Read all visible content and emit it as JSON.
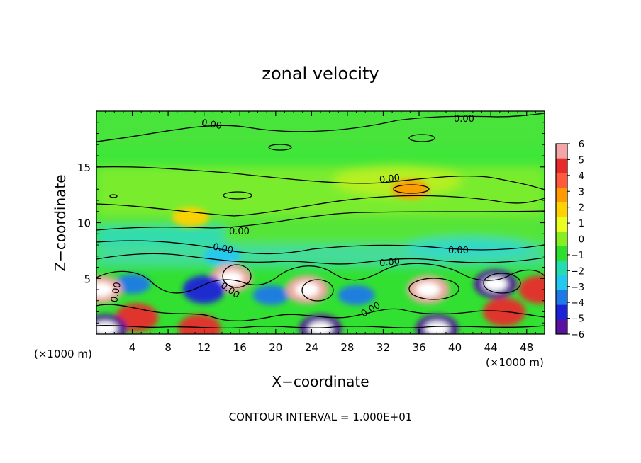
{
  "chart_data": {
    "type": "heatmap",
    "title": "zonal velocity",
    "xlabel": "X−coordinate",
    "ylabel": "Z−coordinate",
    "x_unit_left": "(×1000 m)",
    "x_unit_right": "(×1000 m)",
    "footer": "CONTOUR INTERVAL = 1.000E+01",
    "xlim": [
      0,
      50
    ],
    "ylim": [
      0,
      20
    ],
    "x_ticks": [
      4,
      8,
      12,
      16,
      20,
      24,
      28,
      32,
      36,
      40,
      44,
      48
    ],
    "y_ticks": [
      5,
      10,
      15
    ],
    "colorbar": {
      "ticks": [
        "6",
        "5",
        "4",
        "3",
        "2",
        "1",
        "0",
        "−1",
        "−2",
        "−3",
        "−4",
        "−5",
        "−6"
      ],
      "min": -6,
      "max": 6,
      "colors": [
        "#f4a6a6",
        "#e82a2a",
        "#ff5a3a",
        "#ff9a00",
        "#ffd200",
        "#e8ff20",
        "#86ee22",
        "#2ee02e",
        "#23ddb0",
        "#22c8f0",
        "#1e78e8",
        "#1a22d8",
        "#5a10a0"
      ]
    },
    "contour_labels": [
      "0.00",
      "0.00",
      "0.00",
      "0.00",
      "0.00",
      "0.00",
      "0.00",
      "0.00",
      "0.00",
      "0.00"
    ],
    "features": [
      {
        "x": 35,
        "z": 13,
        "value": 3
      },
      {
        "x": 10.5,
        "z": 10.5,
        "value": 2
      },
      {
        "x": 14,
        "z": 7,
        "value": -3
      },
      {
        "x": 15,
        "z": 5,
        "value": 6
      },
      {
        "x": 4,
        "z": 4.5,
        "value": -4
      },
      {
        "x": 0.5,
        "z": 4,
        "value": 6
      },
      {
        "x": 12,
        "z": 4,
        "value": -5
      },
      {
        "x": 19.5,
        "z": 3.5,
        "value": -4
      },
      {
        "x": 23.5,
        "z": 4,
        "value": 6
      },
      {
        "x": 29,
        "z": 3.5,
        "value": -4
      },
      {
        "x": 37,
        "z": 4,
        "value": 6
      },
      {
        "x": 44.5,
        "z": 4.5,
        "value": -6
      },
      {
        "x": 4.5,
        "z": 1.5,
        "value": 5
      },
      {
        "x": 45.5,
        "z": 2,
        "value": 5
      },
      {
        "x": 1,
        "z": 0.5,
        "value": -6
      },
      {
        "x": 11.5,
        "z": 0.5,
        "value": 5
      },
      {
        "x": 25,
        "z": 0.5,
        "value": -6
      },
      {
        "x": 38,
        "z": 0.5,
        "value": -6
      },
      {
        "x": 49.5,
        "z": 4,
        "value": 5
      }
    ]
  }
}
